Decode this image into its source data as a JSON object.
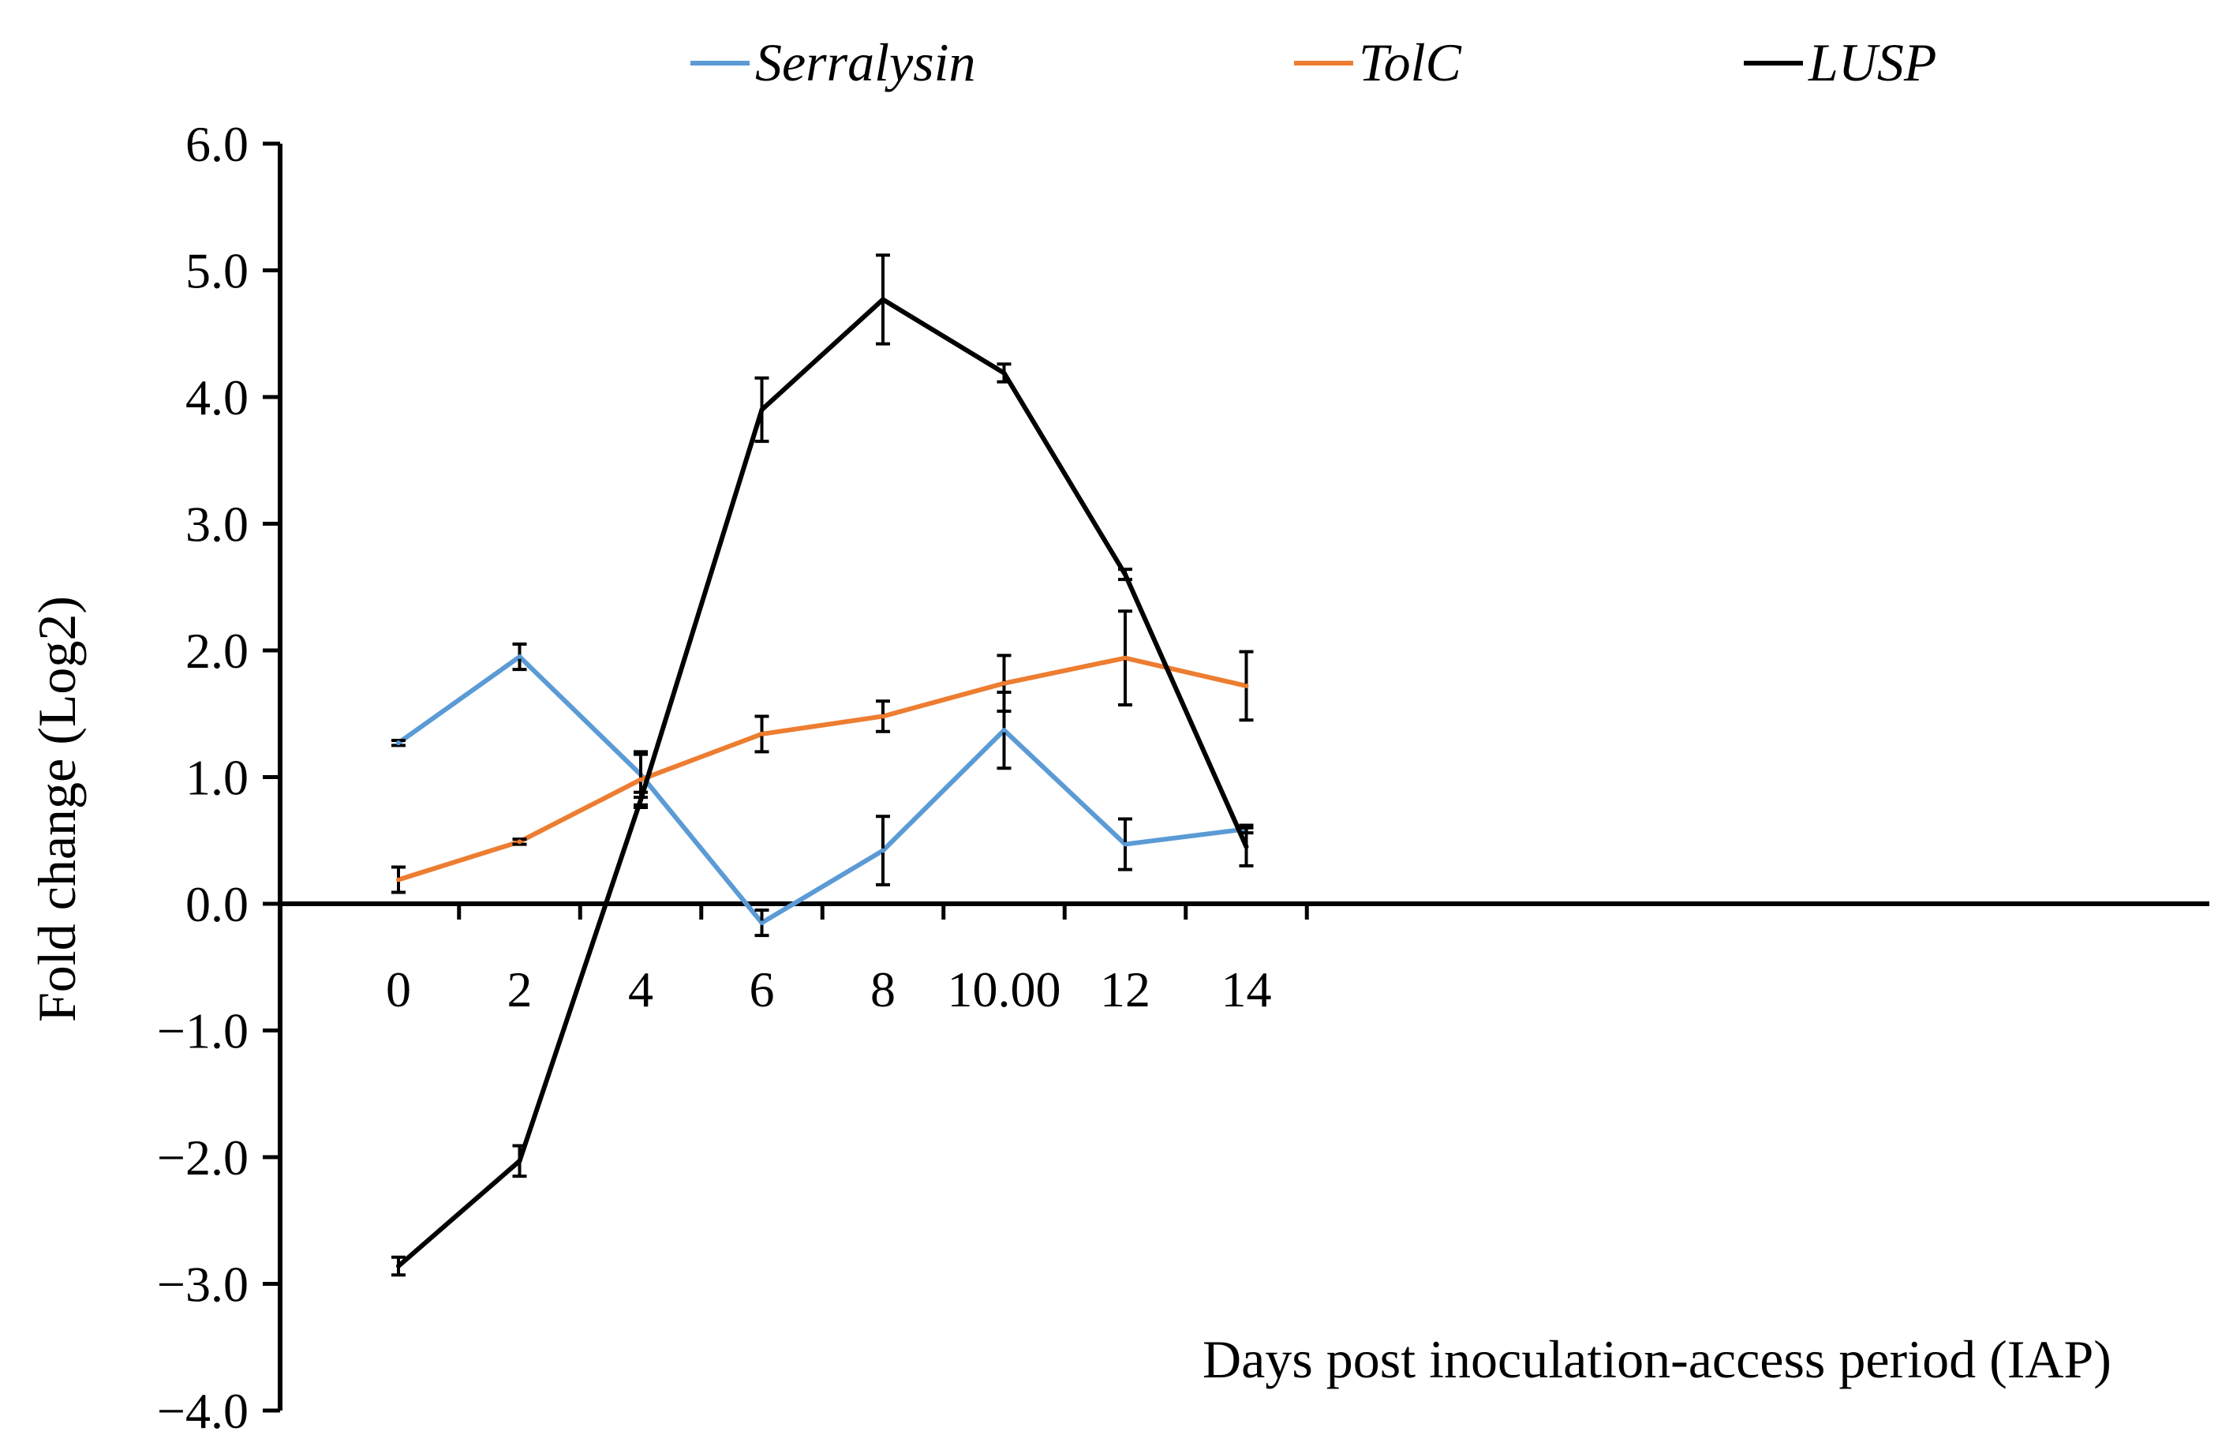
{
  "chart_data": {
    "type": "line",
    "title": "",
    "xlabel": "Days post inoculation-access period (IAP)",
    "ylabel": "Fold change (Log2)",
    "categories": [
      "0",
      "2",
      "4",
      "6",
      "8",
      "10.00",
      "12",
      "14"
    ],
    "x": [
      0,
      2,
      4,
      6,
      8,
      10,
      12,
      14
    ],
    "ylim": [
      -4.0,
      6.0
    ],
    "yticks": [
      6.0,
      5.0,
      4.0,
      3.0,
      2.0,
      1.0,
      0.0,
      -1.0,
      -2.0,
      -3.0,
      -4.0
    ],
    "ytick_labels": [
      "6.0",
      "5.0",
      "4.0",
      "3.0",
      "2.0",
      "1.0",
      "0.0",
      "−1.0",
      "−2.0",
      "−3.0",
      "−4.0"
    ],
    "grid": false,
    "legend_position": "top",
    "series": [
      {
        "name": "Serralysin",
        "color": "#5b9bd5",
        "values": [
          1.27,
          1.95,
          1.02,
          -0.15,
          0.42,
          1.37,
          0.47,
          0.59
        ],
        "errors": [
          0.02,
          0.1,
          0.18,
          0.1,
          0.27,
          0.3,
          0.2,
          0.03
        ]
      },
      {
        "name": "TolC",
        "color": "#ed7d31",
        "values": [
          0.19,
          0.49,
          0.98,
          1.34,
          1.48,
          1.74,
          1.94,
          1.72
        ],
        "errors": [
          0.1,
          0.02,
          0.2,
          0.14,
          0.12,
          0.22,
          0.37,
          0.27
        ]
      },
      {
        "name": "LUSP",
        "color": "#000000",
        "values": [
          -2.86,
          -2.03,
          0.82,
          3.9,
          4.77,
          4.19,
          2.6,
          0.45
        ],
        "errors": [
          0.07,
          0.12,
          0.06,
          0.25,
          0.35,
          0.07,
          0.04,
          0.15
        ]
      }
    ]
  }
}
